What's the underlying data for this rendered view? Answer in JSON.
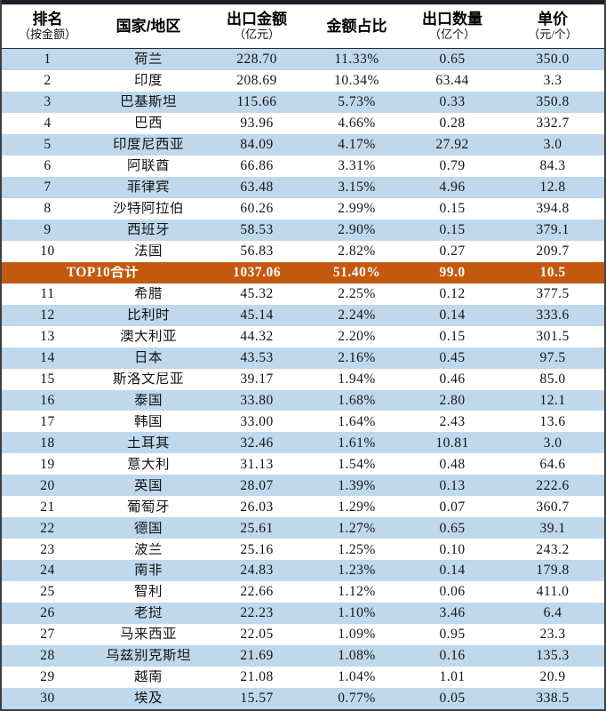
{
  "table": {
    "columns": [
      {
        "title": "排名",
        "subtitle": "（按金额）"
      },
      {
        "title": "国家/地区",
        "subtitle": ""
      },
      {
        "title": "出口金额",
        "subtitle": "（亿元）"
      },
      {
        "title": "金额占比",
        "subtitle": ""
      },
      {
        "title": "出口数量",
        "subtitle": "（亿个）"
      },
      {
        "title": "单价",
        "subtitle": "（元/个）"
      }
    ],
    "rows": [
      {
        "rank": "1",
        "country": "荷兰",
        "amount": "228.70",
        "share": "11.33%",
        "quantity": "0.65",
        "price": "350.0"
      },
      {
        "rank": "2",
        "country": "印度",
        "amount": "208.69",
        "share": "10.34%",
        "quantity": "63.44",
        "price": "3.3"
      },
      {
        "rank": "3",
        "country": "巴基斯坦",
        "amount": "115.66",
        "share": "5.73%",
        "quantity": "0.33",
        "price": "350.8"
      },
      {
        "rank": "4",
        "country": "巴西",
        "amount": "93.96",
        "share": "4.66%",
        "quantity": "0.28",
        "price": "332.7"
      },
      {
        "rank": "5",
        "country": "印度尼西亚",
        "amount": "84.09",
        "share": "4.17%",
        "quantity": "27.92",
        "price": "3.0"
      },
      {
        "rank": "6",
        "country": "阿联酋",
        "amount": "66.86",
        "share": "3.31%",
        "quantity": "0.79",
        "price": "84.3"
      },
      {
        "rank": "7",
        "country": "菲律宾",
        "amount": "63.48",
        "share": "3.15%",
        "quantity": "4.96",
        "price": "12.8"
      },
      {
        "rank": "8",
        "country": "沙特阿拉伯",
        "amount": "60.26",
        "share": "2.99%",
        "quantity": "0.15",
        "price": "394.8"
      },
      {
        "rank": "9",
        "country": "西班牙",
        "amount": "58.53",
        "share": "2.90%",
        "quantity": "0.15",
        "price": "379.1"
      },
      {
        "rank": "10",
        "country": "法国",
        "amount": "56.83",
        "share": "2.82%",
        "quantity": "0.27",
        "price": "209.7"
      },
      {
        "rank": "11",
        "country": "希腊",
        "amount": "45.32",
        "share": "2.25%",
        "quantity": "0.12",
        "price": "377.5"
      },
      {
        "rank": "12",
        "country": "比利时",
        "amount": "45.14",
        "share": "2.24%",
        "quantity": "0.14",
        "price": "333.6"
      },
      {
        "rank": "13",
        "country": "澳大利亚",
        "amount": "44.32",
        "share": "2.20%",
        "quantity": "0.15",
        "price": "301.5"
      },
      {
        "rank": "14",
        "country": "日本",
        "amount": "43.53",
        "share": "2.16%",
        "quantity": "0.45",
        "price": "97.5"
      },
      {
        "rank": "15",
        "country": "斯洛文尼亚",
        "amount": "39.17",
        "share": "1.94%",
        "quantity": "0.46",
        "price": "85.0"
      },
      {
        "rank": "16",
        "country": "泰国",
        "amount": "33.80",
        "share": "1.68%",
        "quantity": "2.80",
        "price": "12.1"
      },
      {
        "rank": "17",
        "country": "韩国",
        "amount": "33.00",
        "share": "1.64%",
        "quantity": "2.43",
        "price": "13.6"
      },
      {
        "rank": "18",
        "country": "土耳其",
        "amount": "32.46",
        "share": "1.61%",
        "quantity": "10.81",
        "price": "3.0"
      },
      {
        "rank": "19",
        "country": "意大利",
        "amount": "31.13",
        "share": "1.54%",
        "quantity": "0.48",
        "price": "64.6"
      },
      {
        "rank": "20",
        "country": "英国",
        "amount": "28.07",
        "share": "1.39%",
        "quantity": "0.13",
        "price": "222.6"
      },
      {
        "rank": "21",
        "country": "葡萄牙",
        "amount": "26.03",
        "share": "1.29%",
        "quantity": "0.07",
        "price": "360.7"
      },
      {
        "rank": "22",
        "country": "德国",
        "amount": "25.61",
        "share": "1.27%",
        "quantity": "0.65",
        "price": "39.1"
      },
      {
        "rank": "23",
        "country": "波兰",
        "amount": "25.16",
        "share": "1.25%",
        "quantity": "0.10",
        "price": "243.2"
      },
      {
        "rank": "24",
        "country": "南非",
        "amount": "24.83",
        "share": "1.23%",
        "quantity": "0.14",
        "price": "179.8"
      },
      {
        "rank": "25",
        "country": "智利",
        "amount": "22.66",
        "share": "1.12%",
        "quantity": "0.06",
        "price": "411.0"
      },
      {
        "rank": "26",
        "country": "老挝",
        "amount": "22.23",
        "share": "1.10%",
        "quantity": "3.46",
        "price": "6.4"
      },
      {
        "rank": "27",
        "country": "马来西亚",
        "amount": "22.05",
        "share": "1.09%",
        "quantity": "0.95",
        "price": "23.3"
      },
      {
        "rank": "28",
        "country": "乌兹别克斯坦",
        "amount": "21.69",
        "share": "1.08%",
        "quantity": "0.16",
        "price": "135.3"
      },
      {
        "rank": "29",
        "country": "越南",
        "amount": "21.08",
        "share": "1.04%",
        "quantity": "1.01",
        "price": "20.9"
      },
      {
        "rank": "30",
        "country": "埃及",
        "amount": "15.57",
        "share": "0.77%",
        "quantity": "0.05",
        "price": "338.5"
      }
    ],
    "total_row": {
      "label": "TOP10合计",
      "amount": "1037.06",
      "share": "51.40%",
      "quantity": "99.0",
      "price": "10.5",
      "insert_after_rank": "10"
    },
    "colors": {
      "stripe_blue": "#bfd8eb",
      "total_orange": "#c2590e",
      "top_bar": "#1b1e26",
      "outer_border": "#3f3f3f",
      "text": "#141414",
      "total_text": "#ffffff"
    }
  }
}
